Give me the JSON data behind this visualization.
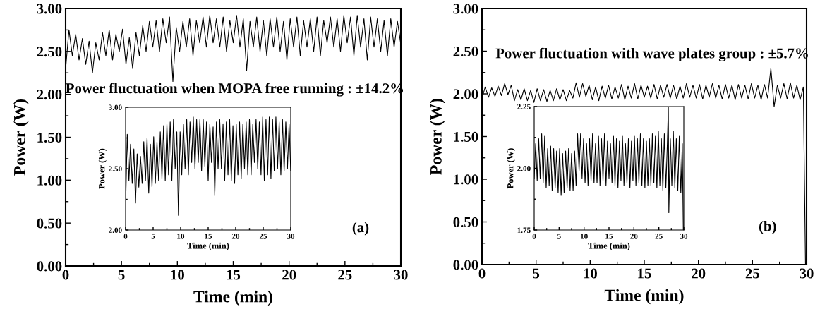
{
  "chart_data": [
    {
      "type": "line",
      "xlabel": "Time (min)",
      "ylabel": "Power (W)",
      "xlim": [
        0,
        30
      ],
      "ylim": [
        0,
        3
      ],
      "xticks": [
        0,
        5,
        10,
        15,
        20,
        25,
        30
      ],
      "yticks": [
        {
          "value": 0,
          "label": "0.00"
        },
        {
          "value": 0.5,
          "label": "0.50"
        },
        {
          "value": 1,
          "label": "1.00"
        },
        {
          "value": 1.5,
          "label": "1.50"
        },
        {
          "value": 2,
          "label": "2.00"
        },
        {
          "value": 2.5,
          "label": "2.50"
        },
        {
          "value": 3,
          "label": "3.00"
        }
      ],
      "annotations": [
        "Power fluctuation when MOPA free running : ±14.2%",
        "(a)"
      ],
      "x": [
        0,
        0.3,
        0.6,
        0.9,
        1.2,
        1.5,
        1.8,
        2.1,
        2.4,
        2.7,
        3,
        3.3,
        3.6,
        3.9,
        4.2,
        4.5,
        4.8,
        5.1,
        5.4,
        5.7,
        6,
        6.3,
        6.6,
        6.9,
        7.2,
        7.5,
        7.8,
        8.1,
        8.4,
        8.7,
        9,
        9.3,
        9.6,
        9.9,
        10.2,
        10.5,
        10.8,
        11.1,
        11.4,
        11.7,
        12,
        12.3,
        12.6,
        12.9,
        13.2,
        13.5,
        13.8,
        14.1,
        14.4,
        14.7,
        15,
        15.3,
        15.6,
        15.9,
        16.2,
        16.5,
        16.8,
        17.1,
        17.4,
        17.7,
        18,
        18.3,
        18.6,
        18.9,
        19.2,
        19.5,
        19.8,
        20.1,
        20.4,
        20.7,
        21,
        21.3,
        21.6,
        21.9,
        22.2,
        22.5,
        22.8,
        23.1,
        23.4,
        23.7,
        24,
        24.3,
        24.6,
        24.9,
        25.2,
        25.5,
        25.8,
        26.1,
        26.4,
        26.7,
        27,
        27.3,
        27.6,
        27.9,
        28.2,
        28.5,
        28.8,
        29.1,
        29.4,
        29.7,
        30
      ],
      "series": [
        {
          "color": "#000000",
          "values": [
            2.3,
            2.75,
            2.45,
            2.7,
            2.4,
            2.65,
            2.35,
            2.62,
            2.25,
            2.6,
            2.4,
            2.72,
            2.45,
            2.75,
            2.4,
            2.7,
            2.5,
            2.76,
            2.35,
            2.66,
            2.3,
            2.72,
            2.45,
            2.8,
            2.5,
            2.85,
            2.55,
            2.86,
            2.5,
            2.88,
            2.6,
            2.9,
            2.15,
            2.78,
            2.5,
            2.85,
            2.55,
            2.88,
            2.45,
            2.86,
            2.6,
            2.9,
            2.55,
            2.92,
            2.6,
            2.88,
            2.55,
            2.9,
            2.5,
            2.86,
            2.6,
            2.92,
            2.55,
            2.88,
            2.28,
            2.85,
            2.55,
            2.9,
            2.5,
            2.86,
            2.45,
            2.88,
            2.55,
            2.9,
            2.5,
            2.85,
            2.4,
            2.88,
            2.55,
            2.9,
            2.45,
            2.86,
            2.55,
            2.88,
            2.5,
            2.9,
            2.45,
            2.86,
            2.6,
            2.9,
            2.55,
            2.88,
            2.5,
            2.92,
            2.6,
            2.9,
            2.45,
            2.92,
            2.55,
            2.88,
            2.4,
            2.9,
            2.55,
            2.88,
            2.5,
            2.86,
            2.45,
            2.88,
            2.55,
            2.85,
            2.58
          ]
        }
      ]
    },
    {
      "type": "line",
      "xlabel": "Time (min)",
      "ylabel": "Power (W)",
      "xlim": [
        0,
        30
      ],
      "ylim": [
        2,
        3
      ],
      "xticks": [
        0,
        5,
        10,
        15,
        20,
        25,
        30
      ],
      "yticks": [
        {
          "value": 2,
          "label": "2.00"
        },
        {
          "value": 2.5,
          "label": "2.50"
        },
        {
          "value": 3,
          "label": "3.00"
        }
      ],
      "x": [
        0,
        0.3,
        0.6,
        0.9,
        1.2,
        1.5,
        1.8,
        2.1,
        2.4,
        2.7,
        3,
        3.3,
        3.6,
        3.9,
        4.2,
        4.5,
        4.8,
        5.1,
        5.4,
        5.7,
        6,
        6.3,
        6.6,
        6.9,
        7.2,
        7.5,
        7.8,
        8.1,
        8.4,
        8.7,
        9,
        9.3,
        9.6,
        9.9,
        10.2,
        10.5,
        10.8,
        11.1,
        11.4,
        11.7,
        12,
        12.3,
        12.6,
        12.9,
        13.2,
        13.5,
        13.8,
        14.1,
        14.4,
        14.7,
        15,
        15.3,
        15.6,
        15.9,
        16.2,
        16.5,
        16.8,
        17.1,
        17.4,
        17.7,
        18,
        18.3,
        18.6,
        18.9,
        19.2,
        19.5,
        19.8,
        20.1,
        20.4,
        20.7,
        21,
        21.3,
        21.6,
        21.9,
        22.2,
        22.5,
        22.8,
        23.1,
        23.4,
        23.7,
        24,
        24.3,
        24.6,
        24.9,
        25.2,
        25.5,
        25.8,
        26.1,
        26.4,
        26.7,
        27,
        27.3,
        27.6,
        27.9,
        28.2,
        28.5,
        28.8,
        29.1,
        29.4,
        29.7,
        30
      ],
      "series": [
        {
          "color": "#000000",
          "values": [
            2.2,
            2.78,
            2.4,
            2.7,
            2.38,
            2.66,
            2.22,
            2.62,
            2.35,
            2.6,
            2.38,
            2.72,
            2.4,
            2.75,
            2.3,
            2.7,
            2.35,
            2.76,
            2.38,
            2.72,
            2.4,
            2.8,
            2.42,
            2.85,
            2.4,
            2.86,
            2.45,
            2.88,
            2.4,
            2.9,
            2.5,
            2.8,
            2.12,
            2.8,
            2.45,
            2.86,
            2.5,
            2.9,
            2.45,
            2.88,
            2.55,
            2.92,
            2.5,
            2.9,
            2.55,
            2.9,
            2.48,
            2.9,
            2.52,
            2.88,
            2.4,
            2.86,
            2.55,
            2.84,
            2.28,
            2.88,
            2.5,
            2.9,
            2.5,
            2.86,
            2.4,
            2.88,
            2.45,
            2.9,
            2.4,
            2.85,
            2.38,
            2.86,
            2.45,
            2.88,
            2.42,
            2.86,
            2.5,
            2.88,
            2.45,
            2.9,
            2.45,
            2.86,
            2.55,
            2.9,
            2.5,
            2.88,
            2.45,
            2.92,
            2.4,
            2.9,
            2.45,
            2.92,
            2.42,
            2.9,
            2.48,
            2.92,
            2.5,
            2.88,
            2.45,
            2.9,
            2.48,
            2.88,
            2.5,
            2.86,
            2.48
          ]
        }
      ]
    },
    {
      "type": "line",
      "xlabel": "Time (min)",
      "ylabel": "Power (W)",
      "xlim": [
        0,
        30
      ],
      "ylim": [
        0,
        3
      ],
      "xticks": [
        0,
        5,
        10,
        15,
        20,
        25,
        30
      ],
      "yticks": [
        {
          "value": 0,
          "label": "0.00"
        },
        {
          "value": 0.5,
          "label": "0.50"
        },
        {
          "value": 1,
          "label": "1.00"
        },
        {
          "value": 1.5,
          "label": "1.50"
        },
        {
          "value": 2,
          "label": "2.00"
        },
        {
          "value": 2.5,
          "label": "2.50"
        },
        {
          "value": 3,
          "label": "3.00"
        }
      ],
      "annotations": [
        "Power fluctuation with wave plates group : ±5.7%",
        "(b)"
      ],
      "x": [
        0,
        0.3,
        0.6,
        0.9,
        1.2,
        1.5,
        1.8,
        2.1,
        2.4,
        2.7,
        3,
        3.3,
        3.6,
        3.9,
        4.2,
        4.5,
        4.8,
        5.1,
        5.4,
        5.7,
        6,
        6.3,
        6.6,
        6.9,
        7.2,
        7.5,
        7.8,
        8.1,
        8.4,
        8.7,
        9,
        9.3,
        9.6,
        9.9,
        10.2,
        10.5,
        10.8,
        11.1,
        11.4,
        11.7,
        12,
        12.3,
        12.6,
        12.9,
        13.2,
        13.5,
        13.8,
        14.1,
        14.4,
        14.7,
        15,
        15.3,
        15.6,
        15.9,
        16.2,
        16.5,
        16.8,
        17.1,
        17.4,
        17.7,
        18,
        18.3,
        18.6,
        18.9,
        19.2,
        19.5,
        19.8,
        20.1,
        20.4,
        20.7,
        21,
        21.3,
        21.6,
        21.9,
        22.2,
        22.5,
        22.8,
        23.1,
        23.4,
        23.7,
        24,
        24.3,
        24.6,
        24.9,
        25.2,
        25.5,
        25.8,
        26.1,
        26.4,
        26.7,
        27,
        27.3,
        27.6,
        27.9,
        28.2,
        28.5,
        28.8,
        29.1,
        29.4,
        29.7,
        29.9
      ],
      "series": [
        {
          "color": "#000000",
          "values": [
            1.95,
            2.08,
            1.96,
            2.07,
            1.97,
            2.09,
            1.98,
            2.12,
            1.99,
            2.1,
            1.92,
            2.05,
            1.93,
            2.06,
            1.92,
            2.04,
            1.9,
            2.06,
            1.92,
            2.05,
            1.91,
            2.04,
            1.92,
            2.06,
            1.93,
            2.05,
            1.92,
            2.04,
            1.95,
            2.13,
            1.96,
            2.12,
            1.97,
            2.1,
            1.93,
            2.08,
            1.92,
            2.09,
            1.95,
            2.1,
            1.94,
            2.08,
            1.95,
            2.11,
            1.93,
            2.09,
            1.95,
            2.12,
            1.94,
            2.1,
            1.96,
            2.09,
            1.95,
            2.11,
            1.94,
            2.1,
            1.96,
            2.11,
            1.95,
            2.1,
            1.94,
            2.09,
            1.95,
            2.12,
            1.96,
            2.1,
            1.95,
            2.11,
            1.94,
            2.1,
            1.96,
            2.12,
            1.95,
            2.1,
            1.94,
            2.11,
            1.95,
            2.1,
            1.93,
            2.11,
            1.95,
            2.1,
            1.94,
            2.12,
            1.95,
            2.1,
            1.93,
            2.11,
            1.95,
            2.3,
            1.85,
            2.1,
            1.95,
            2.12,
            1.94,
            2.13,
            1.95,
            2.1,
            1.93,
            2.08,
            0.0
          ]
        }
      ]
    },
    {
      "type": "line",
      "xlabel": "Time (min)",
      "ylabel": "Power (W)",
      "xlim": [
        0,
        30
      ],
      "ylim": [
        1.75,
        2.25
      ],
      "xticks": [
        0,
        5,
        10,
        15,
        20,
        25,
        30
      ],
      "yticks": [
        {
          "value": 1.75,
          "label": "1.75"
        },
        {
          "value": 2,
          "label": "2.00"
        },
        {
          "value": 2.25,
          "label": "2.25"
        }
      ],
      "x": [
        0,
        0.3,
        0.6,
        0.9,
        1.2,
        1.5,
        1.8,
        2.1,
        2.4,
        2.7,
        3,
        3.3,
        3.6,
        3.9,
        4.2,
        4.5,
        4.8,
        5.1,
        5.4,
        5.7,
        6,
        6.3,
        6.6,
        6.9,
        7.2,
        7.5,
        7.8,
        8.1,
        8.4,
        8.7,
        9,
        9.3,
        9.6,
        9.9,
        10.2,
        10.5,
        10.8,
        11.1,
        11.4,
        11.7,
        12,
        12.3,
        12.6,
        12.9,
        13.2,
        13.5,
        13.8,
        14.1,
        14.4,
        14.7,
        15,
        15.3,
        15.6,
        15.9,
        16.2,
        16.5,
        16.8,
        17.1,
        17.4,
        17.7,
        18,
        18.3,
        18.6,
        18.9,
        19.2,
        19.5,
        19.8,
        20.1,
        20.4,
        20.7,
        21,
        21.3,
        21.6,
        21.9,
        22.2,
        22.5,
        22.8,
        23.1,
        23.4,
        23.7,
        24,
        24.3,
        24.6,
        24.9,
        25.2,
        25.5,
        25.8,
        26.1,
        26.4,
        26.7,
        26.9,
        27,
        27.3,
        27.6,
        27.9,
        28.2,
        28.5,
        28.8,
        29.1,
        29.4,
        29.7,
        29.9
      ],
      "series": [
        {
          "color": "#000000",
          "values": [
            1.96,
            2.1,
            1.95,
            2.12,
            1.96,
            2.14,
            1.94,
            2.13,
            1.92,
            2.08,
            1.93,
            2.09,
            1.91,
            2.08,
            1.92,
            2.07,
            1.9,
            2.08,
            1.89,
            2.06,
            1.9,
            2.07,
            1.92,
            2.08,
            1.91,
            2.06,
            1.91,
            2.07,
            1.93,
            2.14,
            1.99,
            2.14,
            1.96,
            2.12,
            1.94,
            2.1,
            1.93,
            2.12,
            1.95,
            2.14,
            1.94,
            2.1,
            1.94,
            2.13,
            1.93,
            2.12,
            1.95,
            2.14,
            1.93,
            2.11,
            1.96,
            2.1,
            1.94,
            2.13,
            1.93,
            2.12,
            1.92,
            2.11,
            1.95,
            2.13,
            1.93,
            2.1,
            1.94,
            2.12,
            1.92,
            2.11,
            1.95,
            2.13,
            1.93,
            2.12,
            1.94,
            2.14,
            1.93,
            2.12,
            1.92,
            2.11,
            1.93,
            2.12,
            1.93,
            2.14,
            1.94,
            2.13,
            1.92,
            2.15,
            1.93,
            2.12,
            1.91,
            2.14,
            1.92,
            2.1,
            2.25,
            1.82,
            2.12,
            1.93,
            2.15,
            1.92,
            2.12,
            1.91,
            2.13,
            1.9,
            2.1,
            1.75
          ]
        }
      ]
    }
  ]
}
